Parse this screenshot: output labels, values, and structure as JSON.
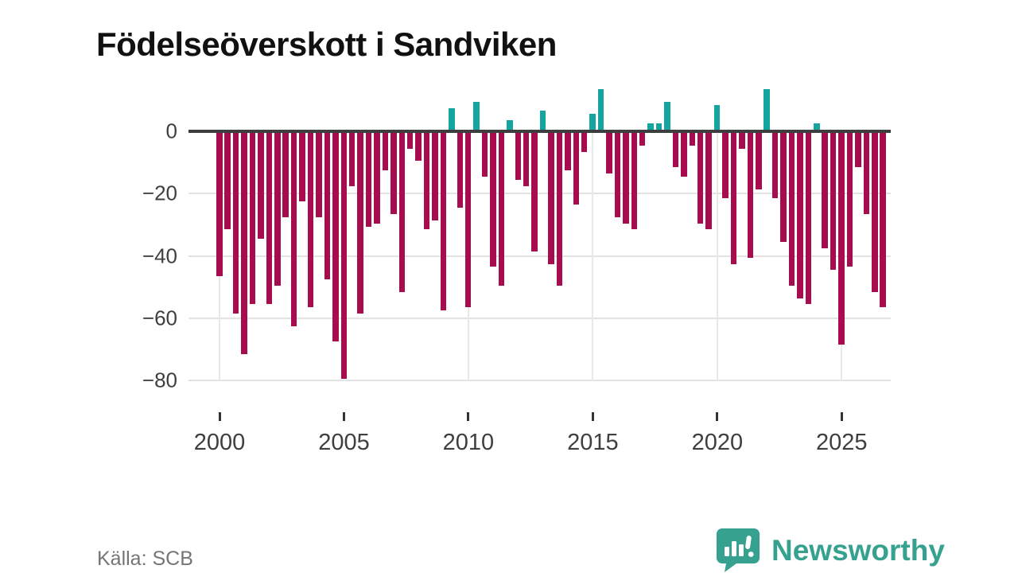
{
  "title": "Födelseöverskott i Sandviken",
  "source": "Källa: SCB",
  "logo": {
    "brand": "Newsworthy",
    "icon": "newsworthy-speech-bubble-chart-icon"
  },
  "chart_data": {
    "type": "bar",
    "title": "Födelseöverskott i Sandviken",
    "start_year": 2000,
    "bars_per_year": 3,
    "x_tick_labels": [
      "2000",
      "2005",
      "2010",
      "2015",
      "2020",
      "2025"
    ],
    "x_tick_years": [
      2000,
      2005,
      2010,
      2015,
      2020,
      2025
    ],
    "y_tick_labels": [
      "0",
      "−20",
      "−40",
      "−60",
      "−80"
    ],
    "y_ticks": [
      0,
      -20,
      -40,
      -60,
      -80
    ],
    "ylim": [
      -86,
      16
    ],
    "grid": true,
    "legend": false,
    "values": [
      -46,
      -31,
      -58,
      -71,
      -55,
      -34,
      -55,
      -49,
      -27,
      -62,
      -22,
      -56,
      -27,
      -47,
      -67,
      -79,
      -17,
      -58,
      -30,
      -29,
      -12,
      -26,
      -51,
      -5,
      -9,
      -31,
      -28,
      -57,
      7,
      -24,
      -56,
      9,
      -14,
      -43,
      -49,
      3,
      -15,
      -17,
      -38,
      6,
      -42,
      -49,
      -12,
      -23,
      -6,
      5,
      13,
      -13,
      -27,
      -29,
      -31,
      -4,
      2,
      2,
      9,
      -11,
      -14,
      -4,
      -29,
      -31,
      8,
      -21,
      -42,
      -5,
      -40,
      -18,
      13,
      -21,
      -35,
      -49,
      -53,
      -55,
      2,
      -37,
      -44,
      -68,
      -43,
      -11,
      -26,
      -51,
      -56
    ],
    "colors": {
      "positive": "#14a5a1",
      "negative": "#a60c4e"
    }
  }
}
